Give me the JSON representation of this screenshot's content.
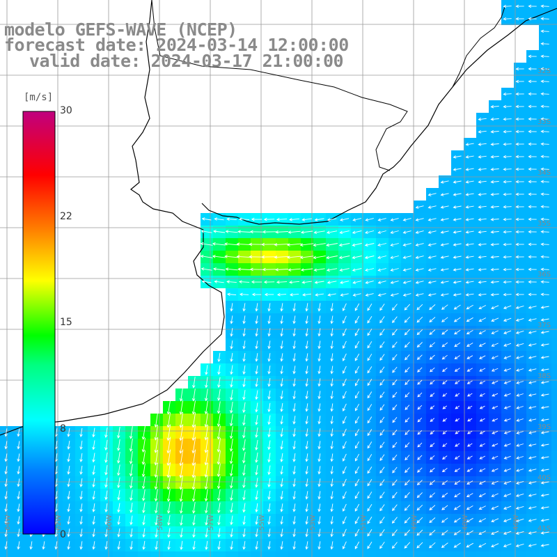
{
  "title": {
    "line1": "modelo GEFS-WAVE (NCEP)",
    "line2": "forecast date: 2024-03-14 12:00:00",
    "line3": "valid date: 2024-03-17 21:00:00"
  },
  "colorbar": {
    "unit": "[m/s]",
    "ticks": [
      "30",
      "22",
      "15",
      "8",
      "0"
    ],
    "min": 0,
    "max": 30
  },
  "map": {
    "lon_labels": [
      "64W",
      "62W",
      "60W",
      "58W",
      "57W",
      "55W",
      "53W",
      "51W",
      "49W",
      "48W",
      "46W"
    ],
    "lat_labels": [
      "32S",
      "33S",
      "34S",
      "35S",
      "36S",
      "37S",
      "38S",
      "39S",
      "40S",
      "41S"
    ],
    "colors": {
      "land": "#ffffff",
      "grid": "#999999",
      "coast": "#000000",
      "arrow": "#ffffff"
    }
  }
}
